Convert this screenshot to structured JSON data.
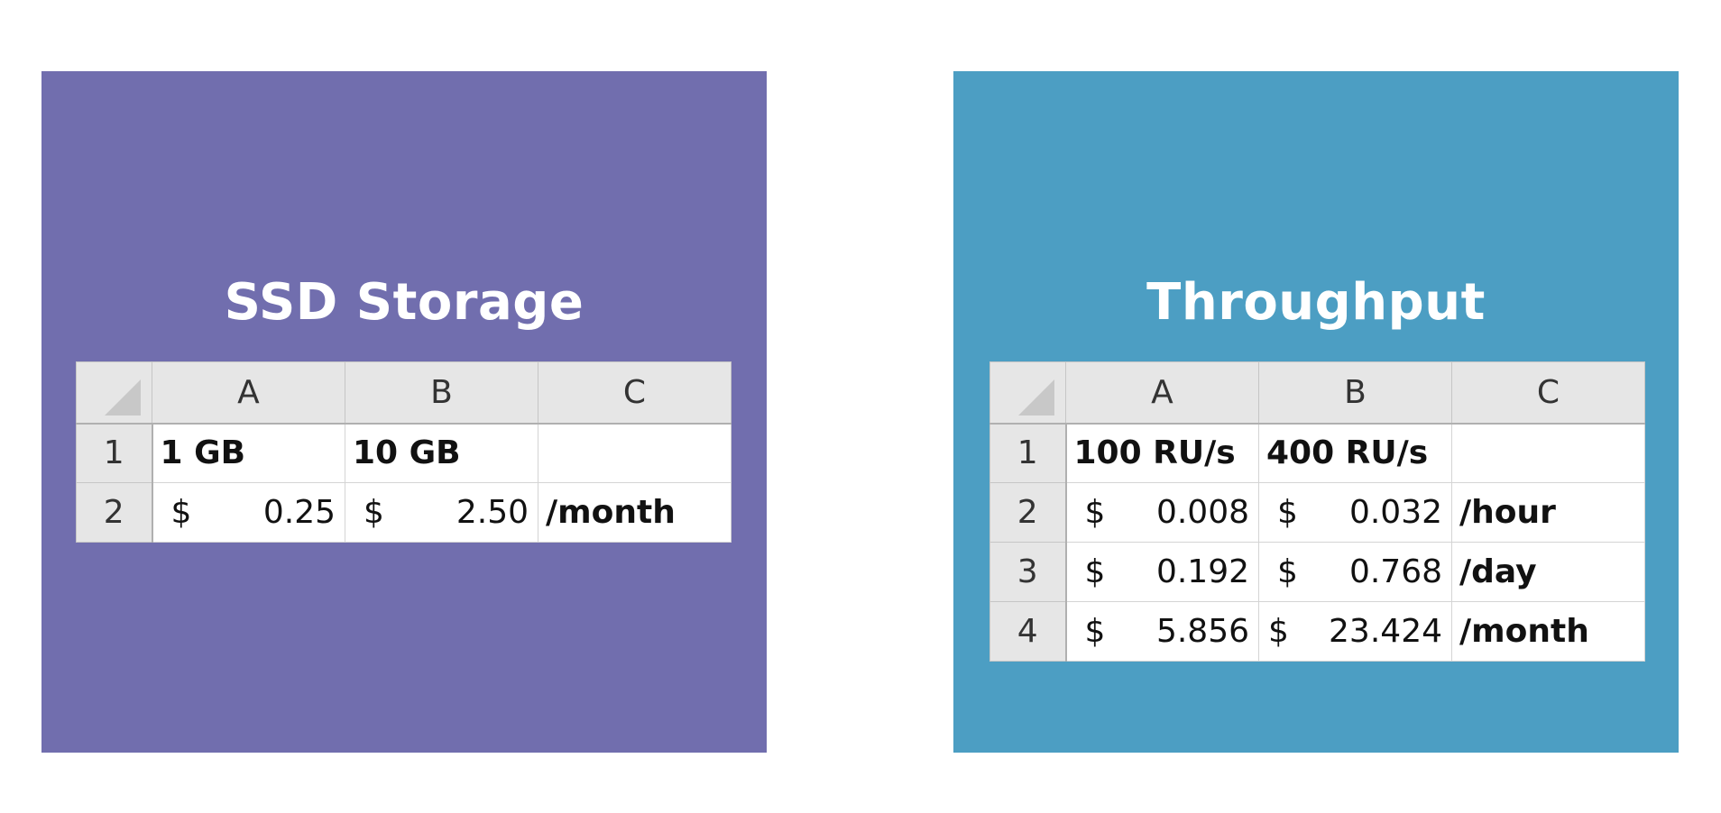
{
  "colors": {
    "storage_panel": "#716eae",
    "throughput_panel": "#4c9ec3",
    "header_gray": "#e6e6e6",
    "grid_line": "#d4d4d4"
  },
  "storage": {
    "title": "SSD Storage",
    "columns": [
      "A",
      "B",
      "C"
    ],
    "rows": [
      {
        "num": "1",
        "a": "1 GB",
        "b": "10 GB",
        "c": ""
      },
      {
        "num": "2",
        "a_cur": "$",
        "a_amt": "0.25",
        "b_cur": "$",
        "b_amt": "2.50",
        "c": "/month"
      }
    ]
  },
  "throughput": {
    "title": "Throughput",
    "columns": [
      "A",
      "B",
      "C"
    ],
    "rows": [
      {
        "num": "1",
        "a": "100 RU/s",
        "b": "400 RU/s",
        "c": ""
      },
      {
        "num": "2",
        "a_cur": "$",
        "a_amt": "0.008",
        "b_cur": "$",
        "b_amt": "0.032",
        "c": "/hour"
      },
      {
        "num": "3",
        "a_cur": "$",
        "a_amt": "0.192",
        "b_cur": "$",
        "b_amt": "0.768",
        "c": "/day"
      },
      {
        "num": "4",
        "a_cur": "$",
        "a_amt": "5.856",
        "b_cur": "$",
        "b_amt": "23.424",
        "c": "/month"
      }
    ]
  }
}
